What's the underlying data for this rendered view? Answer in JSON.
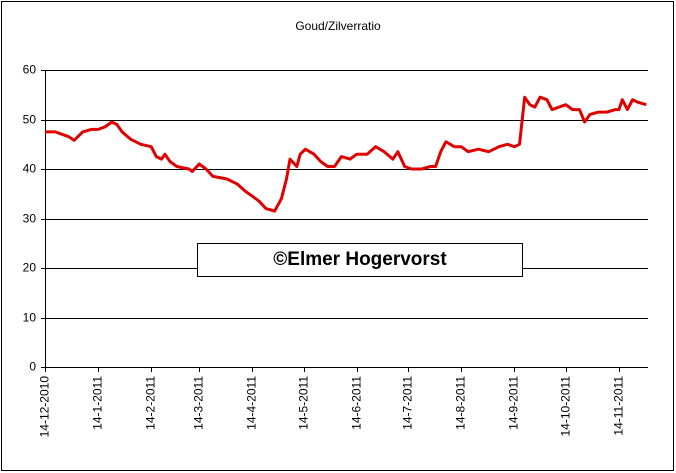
{
  "chart_data": {
    "type": "line",
    "title": "Goud/Zilverratio",
    "watermark": "©Elmer Hogervorst",
    "x": [
      "14-12-2010",
      "20-12-2010",
      "28-12-2010",
      "31-12-2010",
      "5-1-2011",
      "10-1-2011",
      "14-1-2011",
      "18-1-2011",
      "22-1-2011",
      "25-1-2011",
      "28-1-2011",
      "2-2-2011",
      "8-2-2011",
      "14-2-2011",
      "17-2-2011",
      "20-2-2011",
      "22-2-2011",
      "25-2-2011",
      "1-3-2011",
      "8-3-2011",
      "10-3-2011",
      "14-3-2011",
      "18-3-2011",
      "22-3-2011",
      "30-3-2011",
      "5-4-2011",
      "10-4-2011",
      "14-4-2011",
      "18-4-2011",
      "22-4-2011",
      "27-4-2011",
      "1-5-2011",
      "4-5-2011",
      "6-5-2011",
      "10-5-2011",
      "12-5-2011",
      "15-5-2011",
      "20-5-2011",
      "24-5-2011",
      "28-5-2011",
      "1-6-2011",
      "5-6-2011",
      "10-6-2011",
      "14-6-2011",
      "20-6-2011",
      "25-6-2011",
      "30-6-2011",
      "5-7-2011",
      "8-7-2011",
      "12-7-2011",
      "16-7-2011",
      "22-7-2011",
      "27-7-2011",
      "30-7-2011",
      "2-8-2011",
      "5-8-2011",
      "10-8-2011",
      "14-8-2011",
      "18-8-2011",
      "24-8-2011",
      "30-8-2011",
      "5-9-2011",
      "10-9-2011",
      "14-9-2011",
      "17-9-2011",
      "20-9-2011",
      "23-9-2011",
      "26-9-2011",
      "29-9-2011",
      "3-10-2011",
      "6-10-2011",
      "10-10-2011",
      "14-10-2011",
      "18-10-2011",
      "22-10-2011",
      "25-10-2011",
      "28-10-2011",
      "2-11-2011",
      "7-11-2011",
      "12-11-2011",
      "14-11-2011",
      "16-11-2011",
      "19-11-2011",
      "22-11-2011",
      "25-11-2011",
      "30-11-2011"
    ],
    "series": [
      {
        "name": "Goud/Zilverratio",
        "color": "#e00000",
        "values": [
          47.5,
          47.5,
          46.5,
          45.8,
          47.5,
          48,
          48,
          48.5,
          49.5,
          49,
          47.5,
          46,
          45,
          44.5,
          42.5,
          42,
          43,
          41.5,
          40.5,
          40,
          39.5,
          41,
          40,
          38.5,
          38,
          37,
          35.5,
          34.5,
          33.5,
          32,
          31.5,
          34,
          38,
          42,
          40.5,
          43,
          44,
          43,
          41.5,
          40.5,
          40.5,
          42.5,
          42,
          43,
          43,
          44.5,
          43.5,
          42,
          43.5,
          40.5,
          40,
          40,
          40.5,
          40.5,
          43.5,
          45.5,
          44.5,
          44.5,
          43.5,
          44,
          43.5,
          44.5,
          45,
          44.5,
          45,
          54.5,
          53,
          52.5,
          54.5,
          54,
          52,
          52.5,
          53,
          52,
          52,
          49.5,
          51,
          51.5,
          51.5,
          52,
          52,
          54,
          52,
          54,
          53.5,
          53
        ]
      }
    ],
    "xlim": [
      "14-12-2010",
      "1-12-2011"
    ],
    "xticks": [
      "14-12-2010",
      "14-1-2011",
      "14-2-2011",
      "14-3-2011",
      "14-4-2011",
      "14-5-2011",
      "14-6-2011",
      "14-7-2011",
      "14-8-2011",
      "14-9-2011",
      "14-10-2011",
      "14-11-2011"
    ],
    "ylim": [
      0,
      60
    ],
    "yticks": [
      0,
      10,
      20,
      30,
      40,
      50,
      60
    ],
    "grid": true
  }
}
